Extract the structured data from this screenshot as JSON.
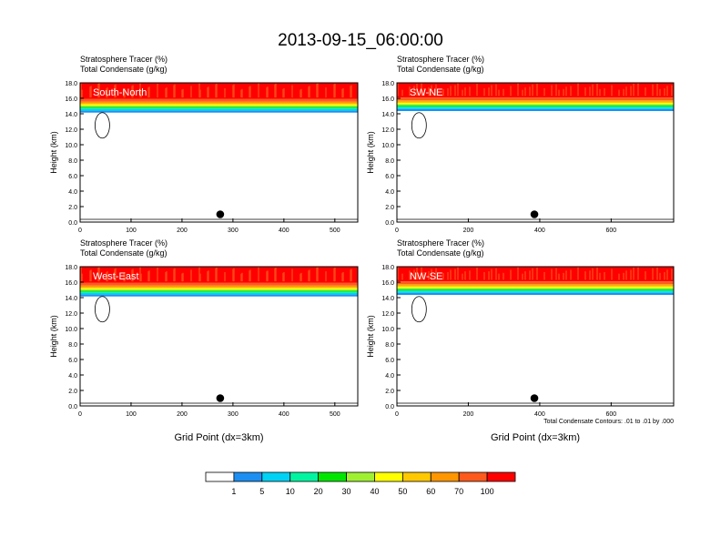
{
  "title": "2013-09-15_06:00:00",
  "chart_data": {
    "type": "contour-cross-section",
    "panel_header_lines": [
      "Stratosphere Tracer   (%)",
      "Total Condensate   (g/kg)"
    ],
    "y_label": "Height (km)",
    "y_ticks": [
      "0.0",
      "2.0",
      "4.0",
      "6.0",
      "8.0",
      "10.0",
      "12.0",
      "14.0",
      "16.0",
      "18.0"
    ],
    "ylim": [
      0,
      18
    ],
    "x_label": "Grid Point (dx=3km)",
    "contour_note": "Total Condensate Contours: .01 to .01 by .000",
    "panels": [
      {
        "label": "South-North",
        "xlim": [
          0,
          545
        ],
        "x_ticks": [
          0,
          100,
          200,
          300,
          400,
          500
        ],
        "tropopause_km": 14.6,
        "marker_x": 275,
        "marker_y_km": 1.0,
        "x_label": "",
        "note": ""
      },
      {
        "label": "SW-NE",
        "xlim": [
          0,
          775
        ],
        "x_ticks": [
          0,
          200,
          400,
          600
        ],
        "tropopause_km": 14.8,
        "marker_x": 385,
        "marker_y_km": 1.0,
        "x_label": "",
        "note": ""
      },
      {
        "label": "West-East",
        "xlim": [
          0,
          545
        ],
        "x_ticks": [
          0,
          100,
          200,
          300,
          400,
          500
        ],
        "tropopause_km": 14.6,
        "marker_x": 275,
        "marker_y_km": 1.0,
        "x_label": "Grid Point (dx=3km)",
        "note": ""
      },
      {
        "label": "NW-SE",
        "xlim": [
          0,
          775
        ],
        "x_ticks": [
          0,
          200,
          400,
          600
        ],
        "tropopause_km": 14.8,
        "marker_x": 385,
        "marker_y_km": 1.0,
        "x_label": "Grid Point (dx=3km)",
        "note": "Total Condensate Contours: .01 to .01 by .000"
      }
    ],
    "colorbar": {
      "labels": [
        "1",
        "5",
        "10",
        "20",
        "30",
        "40",
        "50",
        "60",
        "70",
        "100"
      ],
      "colors": [
        "#ffffff",
        "#1e8ff2",
        "#00d2f5",
        "#00f5a0",
        "#00e600",
        "#a0f032",
        "#ffff00",
        "#ffc800",
        "#ff9600",
        "#ff5a1e",
        "#ff0000"
      ]
    }
  }
}
